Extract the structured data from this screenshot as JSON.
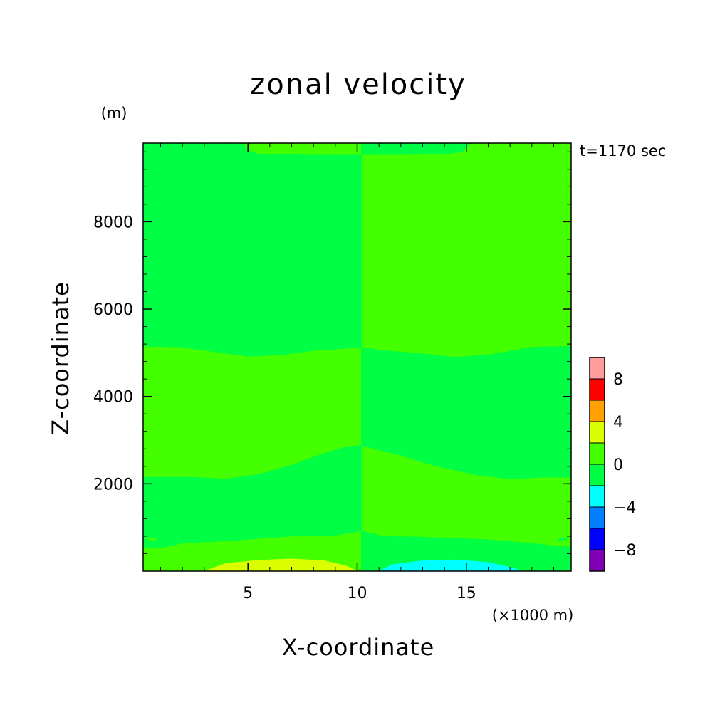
{
  "chart_data": {
    "type": "heatmap",
    "title": "zonal velocity",
    "xlabel": "X-coordinate",
    "ylabel": "Z-coordinate",
    "x_unit": "(×1000 m)",
    "y_unit": "(m)",
    "time_label": "t=1170 sec",
    "xlim": [
      0.2,
      19.8
    ],
    "ylim": [
      0,
      9800
    ],
    "x_ticks": [
      5,
      10,
      15
    ],
    "y_ticks": [
      2000,
      4000,
      6000,
      8000
    ],
    "colorbar": {
      "levels": [
        -10,
        -8,
        -6,
        -4,
        -2,
        0,
        2,
        4,
        6,
        8,
        10
      ],
      "colors": [
        "#7f00b2",
        "#0000ff",
        "#0080ff",
        "#00ffff",
        "#00ff44",
        "#44ff00",
        "#dbff00",
        "#ffa100",
        "#ff0000",
        "#ff9d9d"
      ],
      "tick_labels": [
        "-8",
        "-4",
        "0",
        "4",
        "8"
      ],
      "tick_values": [
        -8,
        -4,
        0,
        4,
        8
      ]
    },
    "regions": [
      {
        "value_range": [
          0,
          2
        ],
        "color": "#44ff00",
        "description": "x 0.2-10.2 bulk; x 10.2-19.8 z 5100-9800 and 900-2800 bands"
      },
      {
        "value_range": [
          -2,
          0
        ],
        "color": "#00ff44",
        "description": "x 0.2-10.2 z 5100-9800 and 900-2100 bands; x 10.2-19.8 z 2800-5100 and 0-900 bands"
      },
      {
        "value_range": [
          2,
          4
        ],
        "color": "#dbff00",
        "description": "near surface, x 3-10"
      },
      {
        "value_range": [
          -4,
          -2
        ],
        "color": "#00ffff",
        "description": "near surface, x 11-17"
      }
    ]
  }
}
